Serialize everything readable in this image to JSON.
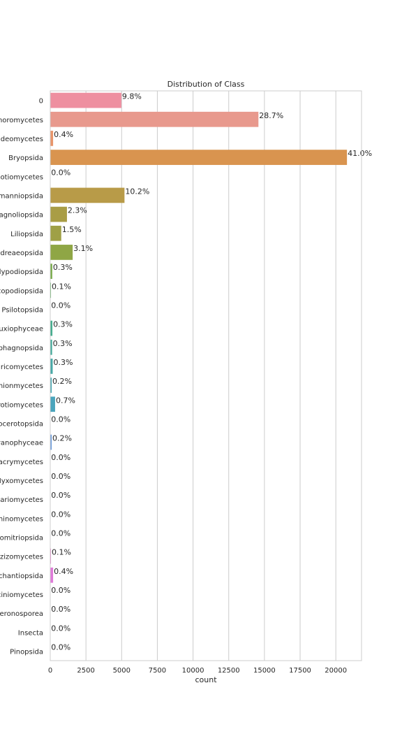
{
  "chart_data": {
    "type": "bar",
    "orientation": "horizontal",
    "title": "Distribution of  Class",
    "xlabel": "count",
    "ylabel": "",
    "xlim": [
      0,
      21800
    ],
    "xticks": [
      0,
      2500,
      5000,
      7500,
      10000,
      12500,
      15000,
      17500,
      20000
    ],
    "xtick_labels": [
      "0",
      "2500",
      "5000",
      "7500",
      "10000",
      "12500",
      "15000",
      "17500",
      "20000"
    ],
    "grid": "vertical",
    "categories": [
      "0",
      "noromycetes",
      "ideomycetes",
      "Bryopsida",
      "eotiomycetes",
      "manniopsida",
      "agnoliopsida",
      "Liliopsida",
      "ndreaeopsida",
      "lypodiopsida",
      "copodiopsida",
      "Psilotopsida",
      "uxiophyceae",
      "phagnopsida",
      "aricomycetes",
      "onionmycetes",
      "rotiomycetes",
      "ocerotopsida",
      "yanophyceae",
      "acrymycetes",
      "Myxomycetes",
      "dariomycetes",
      "hinomycetes",
      "lomitriopsida",
      "ezizomycetes",
      "chantiopsida",
      "ciniomycetes",
      "eronosporea",
      "Insecta",
      "Pinopsida"
    ],
    "values": [
      4980,
      14580,
      200,
      20780,
      10,
      5200,
      1170,
      770,
      1570,
      140,
      50,
      10,
      150,
      130,
      170,
      100,
      340,
      15,
      100,
      10,
      10,
      10,
      10,
      10,
      50,
      200,
      10,
      10,
      10,
      10
    ],
    "percent_labels": [
      "9.8%",
      "28.7%",
      "0.4%",
      "41.0%",
      "0.0%",
      "10.2%",
      "2.3%",
      "1.5%",
      "3.1%",
      "0.3%",
      "0.1%",
      "0.0%",
      "0.3%",
      "0.3%",
      "0.3%",
      "0.2%",
      "0.7%",
      "0.0%",
      "0.2%",
      "0.0%",
      "0.0%",
      "0.0%",
      "0.0%",
      "0.0%",
      "0.1%",
      "0.4%",
      "0.0%",
      "0.0%",
      "0.0%",
      "0.0%"
    ],
    "colors": [
      "#ee8fa0",
      "#e8998d",
      "#e8956a",
      "#d9944f",
      "#c79c4a",
      "#b89b48",
      "#a99d45",
      "#9fa046",
      "#8fa645",
      "#7aac4c",
      "#5aae5a",
      "#4bae7a",
      "#47ad8f",
      "#45ab9c",
      "#47a9a7",
      "#48a7b1",
      "#4aa4bc",
      "#4d9fcb",
      "#6b9bdc",
      "#8d95e2",
      "#a78de4",
      "#bc86e4",
      "#cf7fe2",
      "#dd7ad8",
      "#e478c9",
      "#e07ad9",
      "#e684c0",
      "#ea86ad",
      "#ec89a0",
      "#ee8c96"
    ]
  }
}
